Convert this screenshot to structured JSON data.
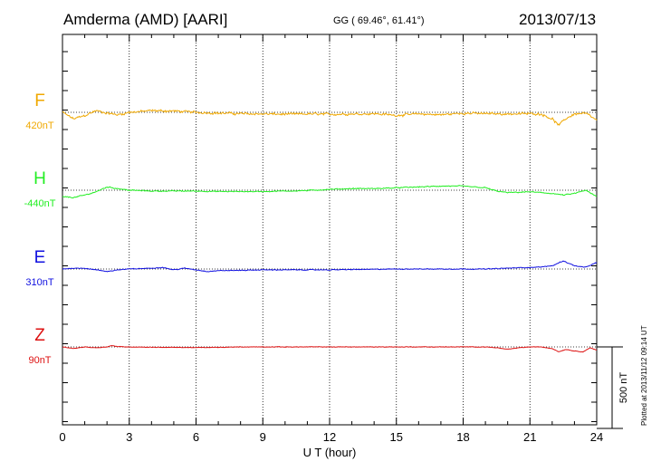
{
  "header": {
    "station": "Amderma (AMD)  [AARI]",
    "coords": "GG ( 69.46°,  61.41°)",
    "date": "2013/07/13"
  },
  "plotted_note": "Plotted at 2013/11/12 09:14 UT",
  "chart_data": {
    "type": "line",
    "xlabel": "U T (hour)",
    "xlim": [
      0,
      24
    ],
    "xticks": [
      "0",
      "3",
      "6",
      "9",
      "12",
      "15",
      "18",
      "21",
      "24"
    ],
    "scale_bar_label": "500 nT",
    "scale_bar_nT": 500,
    "series": [
      {
        "name": "F",
        "baseline_label": "420nT",
        "color": "#f0a800",
        "noise": 9,
        "points": [
          [
            0,
            0
          ],
          [
            0.5,
            -40
          ],
          [
            1,
            -20
          ],
          [
            1.5,
            10
          ],
          [
            2,
            -5
          ],
          [
            2.5,
            -15
          ],
          [
            3,
            0
          ],
          [
            4,
            10
          ],
          [
            5,
            8
          ],
          [
            6,
            0
          ],
          [
            7,
            -5
          ],
          [
            8,
            -8
          ],
          [
            9,
            -10
          ],
          [
            10,
            -12
          ],
          [
            11,
            -10
          ],
          [
            12,
            -12
          ],
          [
            13,
            -10
          ],
          [
            14,
            -8
          ],
          [
            15,
            -18
          ],
          [
            16,
            -10
          ],
          [
            17,
            -15
          ],
          [
            18,
            -5
          ],
          [
            19,
            -8
          ],
          [
            20,
            -10
          ],
          [
            21,
            -8
          ],
          [
            21.5,
            -10
          ],
          [
            22,
            -40
          ],
          [
            22.3,
            -80
          ],
          [
            22.6,
            -40
          ],
          [
            23,
            -10
          ],
          [
            23.5,
            -5
          ],
          [
            24,
            -50
          ]
        ]
      },
      {
        "name": "H",
        "baseline_label": "-440nT",
        "color": "#22ee22",
        "noise": 4,
        "points": [
          [
            0,
            -40
          ],
          [
            0.5,
            -45
          ],
          [
            1,
            -30
          ],
          [
            1.5,
            -10
          ],
          [
            2,
            20
          ],
          [
            2.5,
            10
          ],
          [
            3,
            0
          ],
          [
            4,
            -5
          ],
          [
            5,
            -5
          ],
          [
            6,
            -5
          ],
          [
            7,
            -8
          ],
          [
            8,
            -8
          ],
          [
            9,
            -8
          ],
          [
            10,
            -5
          ],
          [
            11,
            -2
          ],
          [
            12,
            5
          ],
          [
            13,
            10
          ],
          [
            14,
            10
          ],
          [
            15,
            15
          ],
          [
            16,
            20
          ],
          [
            17,
            25
          ],
          [
            18,
            25
          ],
          [
            19,
            15
          ],
          [
            19.5,
            -5
          ],
          [
            20,
            -15
          ],
          [
            21,
            -10
          ],
          [
            22,
            -20
          ],
          [
            22.5,
            -30
          ],
          [
            23,
            -20
          ],
          [
            23.5,
            0
          ],
          [
            24,
            -40
          ]
        ]
      },
      {
        "name": "E",
        "baseline_label": "310nT",
        "color": "#1010e0",
        "noise": 3,
        "points": [
          [
            0,
            0
          ],
          [
            0.5,
            5
          ],
          [
            1,
            5
          ],
          [
            1.5,
            -5
          ],
          [
            2,
            -15
          ],
          [
            2.5,
            -5
          ],
          [
            3,
            0
          ],
          [
            4,
            5
          ],
          [
            4.5,
            10
          ],
          [
            5,
            -5
          ],
          [
            5.5,
            5
          ],
          [
            6,
            -5
          ],
          [
            6.5,
            -15
          ],
          [
            7,
            -10
          ],
          [
            8,
            -8
          ],
          [
            9,
            -5
          ],
          [
            10,
            -5
          ],
          [
            11,
            -5
          ],
          [
            12,
            -5
          ],
          [
            13,
            -3
          ],
          [
            14,
            -2
          ],
          [
            15,
            0
          ],
          [
            16,
            0
          ],
          [
            17,
            0
          ],
          [
            18,
            0
          ],
          [
            19,
            0
          ],
          [
            20,
            5
          ],
          [
            21,
            10
          ],
          [
            21.5,
            12
          ],
          [
            22,
            20
          ],
          [
            22.5,
            50
          ],
          [
            23,
            20
          ],
          [
            23.5,
            10
          ],
          [
            24,
            40
          ]
        ]
      },
      {
        "name": "Z",
        "baseline_label": "90nT",
        "color": "#dd1111",
        "noise": 2,
        "points": [
          [
            0,
            0
          ],
          [
            0.5,
            -10
          ],
          [
            1,
            0
          ],
          [
            1.5,
            -5
          ],
          [
            2,
            0
          ],
          [
            2.2,
            8
          ],
          [
            2.5,
            2
          ],
          [
            3,
            0
          ],
          [
            4,
            -2
          ],
          [
            5,
            -3
          ],
          [
            6,
            -4
          ],
          [
            7,
            -3
          ],
          [
            8,
            0
          ],
          [
            9,
            0
          ],
          [
            10,
            0
          ],
          [
            11,
            0
          ],
          [
            12,
            0
          ],
          [
            13,
            0
          ],
          [
            14,
            0
          ],
          [
            15,
            0
          ],
          [
            16,
            0
          ],
          [
            17,
            0
          ],
          [
            18,
            0
          ],
          [
            19,
            0
          ],
          [
            19.5,
            -5
          ],
          [
            20,
            -15
          ],
          [
            20.5,
            -5
          ],
          [
            21,
            0
          ],
          [
            21.5,
            0
          ],
          [
            22,
            -10
          ],
          [
            22.3,
            -30
          ],
          [
            22.6,
            -15
          ],
          [
            23,
            -25
          ],
          [
            23.4,
            -30
          ],
          [
            23.7,
            -5
          ],
          [
            24,
            -20
          ]
        ]
      }
    ]
  }
}
